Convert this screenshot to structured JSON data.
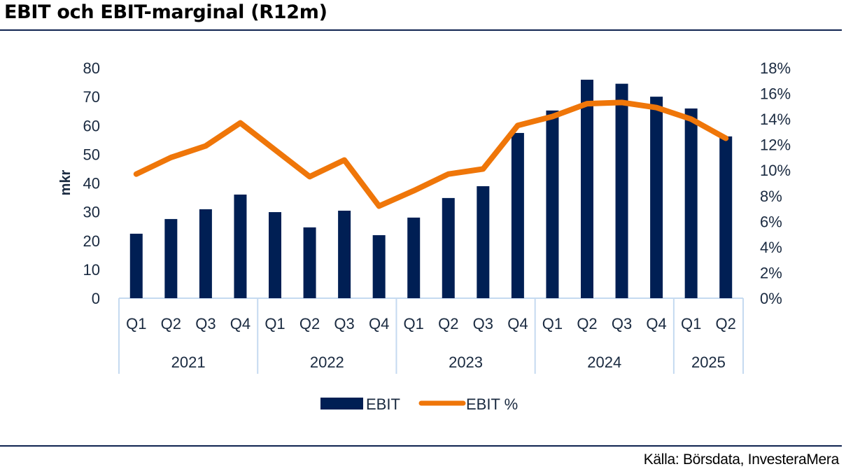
{
  "header": {
    "title": "EBIT och EBIT-marginal (R12m)"
  },
  "footer": {
    "source": "Källa: Börsdata, InvesteraMera"
  },
  "colors": {
    "bar": "#001f54",
    "line": "#ef7609",
    "axis_grid": "#c5daf0",
    "text": "#1a2a40",
    "rule": "#0f2350"
  },
  "chart_data": {
    "type": "bar",
    "title": "EBIT och EBIT-marginal (R12m)",
    "xlabel": "",
    "ylabel": "mkr",
    "y2label": "",
    "ylim": [
      0,
      80
    ],
    "y2lim": [
      0,
      18
    ],
    "yticks": [
      "0",
      "10",
      "20",
      "30",
      "40",
      "50",
      "60",
      "70",
      "80"
    ],
    "y2ticks": [
      "0%",
      "2%",
      "4%",
      "6%",
      "8%",
      "10%",
      "12%",
      "14%",
      "16%",
      "18%"
    ],
    "grid": false,
    "legend_position": "bottom",
    "groups": [
      {
        "label": "2021",
        "quarters": [
          "Q1",
          "Q2",
          "Q3",
          "Q4"
        ]
      },
      {
        "label": "2022",
        "quarters": [
          "Q1",
          "Q2",
          "Q3",
          "Q4"
        ]
      },
      {
        "label": "2023",
        "quarters": [
          "Q1",
          "Q2",
          "Q3",
          "Q4"
        ]
      },
      {
        "label": "2024",
        "quarters": [
          "Q1",
          "Q2",
          "Q3",
          "Q4"
        ]
      },
      {
        "label": "2025",
        "quarters": [
          "Q1",
          "Q2"
        ]
      }
    ],
    "categories": [
      "2021 Q1",
      "2021 Q2",
      "2021 Q3",
      "2021 Q4",
      "2022 Q1",
      "2022 Q2",
      "2022 Q3",
      "2022 Q4",
      "2023 Q1",
      "2023 Q2",
      "2023 Q3",
      "2023 Q4",
      "2024 Q1",
      "2024 Q2",
      "2024 Q3",
      "2024 Q4",
      "2025 Q1",
      "2025 Q2"
    ],
    "series": [
      {
        "name": "EBIT",
        "type": "bar",
        "axis": "left",
        "unit": "mkr",
        "values": [
          22.4,
          27.5,
          30.9,
          36.0,
          29.9,
          24.6,
          30.4,
          21.9,
          28.0,
          34.8,
          38.9,
          57.4,
          65.2,
          75.9,
          74.5,
          70.0,
          65.9,
          56.2
        ]
      },
      {
        "name": "EBIT %",
        "type": "line",
        "axis": "right",
        "unit": "%",
        "values": [
          9.7,
          11.0,
          11.9,
          13.7,
          11.6,
          9.5,
          10.8,
          7.2,
          8.4,
          9.7,
          10.1,
          13.5,
          14.2,
          15.2,
          15.3,
          14.9,
          14.0,
          12.5
        ]
      }
    ]
  }
}
